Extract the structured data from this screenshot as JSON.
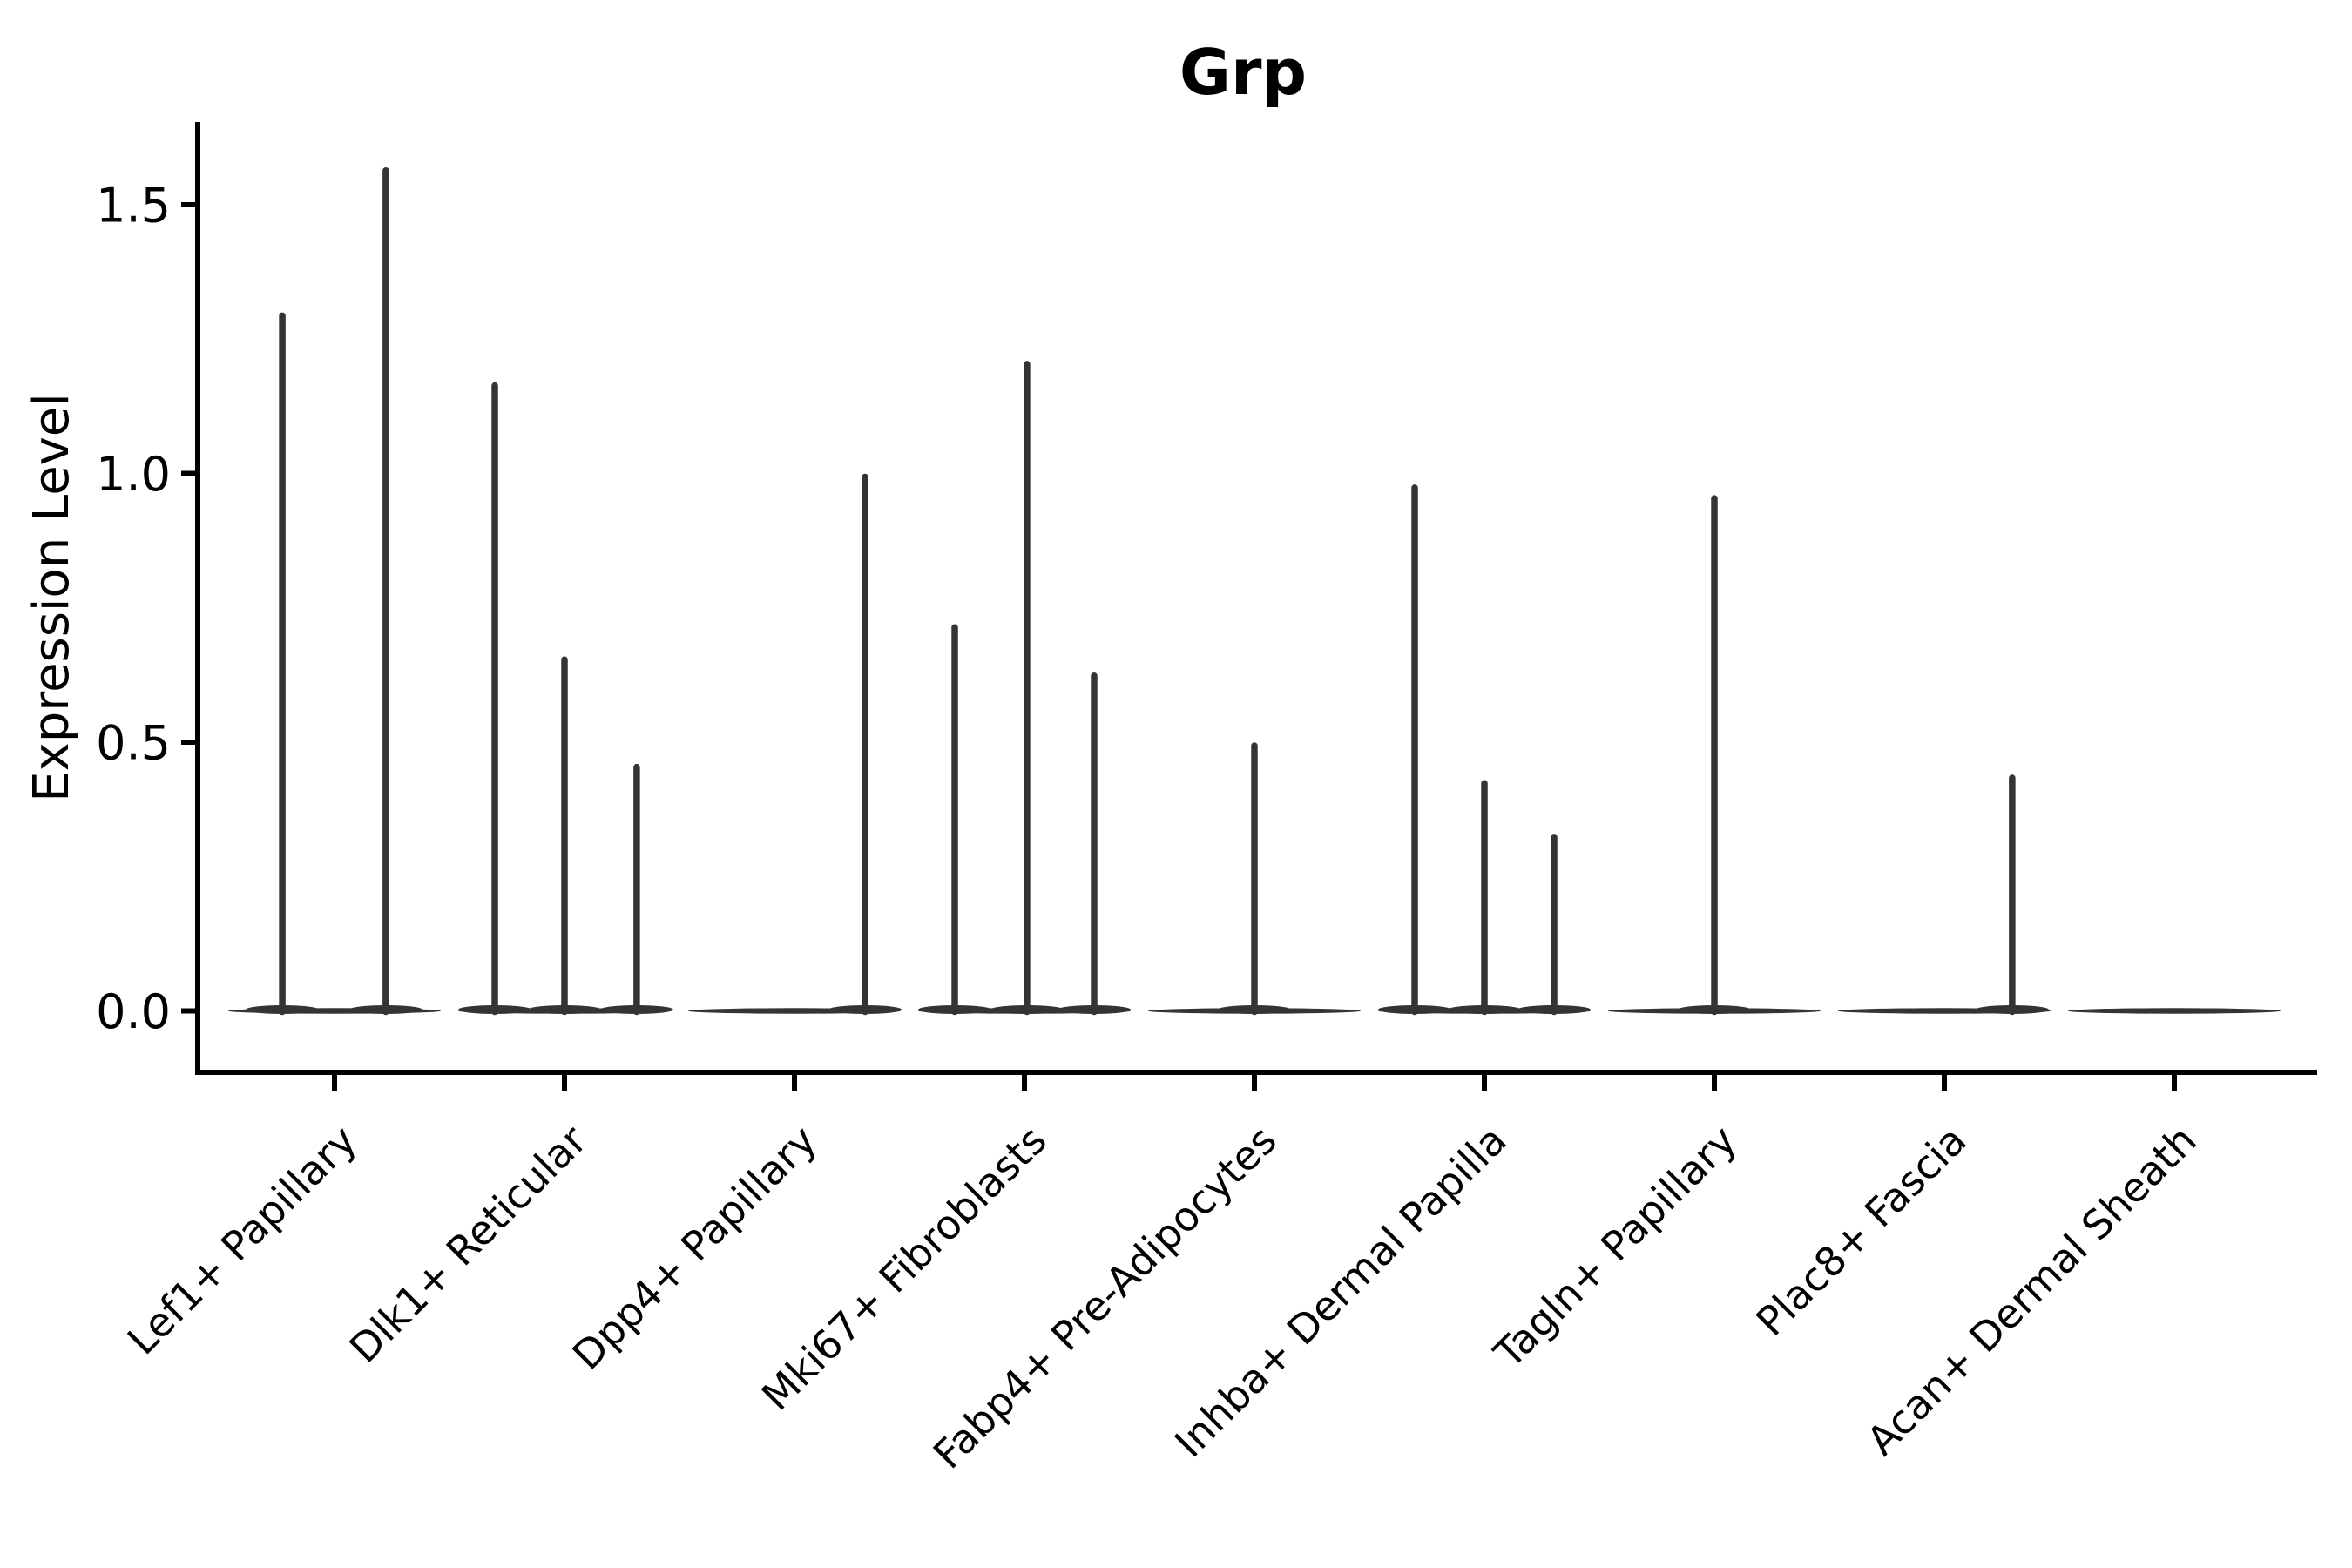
{
  "title": "Grp",
  "axes": {
    "ylabel": "Expression Level",
    "ytick_labels": [
      "0.0",
      "0.5",
      "1.0",
      "1.5"
    ]
  },
  "chart_data": {
    "type": "violin",
    "title": "Grp",
    "xlabel": "",
    "ylabel": "Expression Level",
    "ylim": [
      -0.11,
      1.65
    ],
    "yticks": [
      0.0,
      0.5,
      1.0,
      1.5
    ],
    "ytick_labels": [
      "0.0",
      "0.5",
      "1.0",
      "1.5"
    ],
    "grid": false,
    "legend": "none",
    "violin_color": "#343434",
    "axis_color": "#000000",
    "description": "Violin plot of Grp expression per fibroblast cluster; violins are flat at 0 with thin density spikes reaching the maximum expression values listed below. Spike dx is the horizontal dodge offset as a fraction of category spacing.",
    "categories": [
      "Lef1+ Papillary",
      "Dlk1+ Reticular",
      "Dpp4+ Papillary",
      "Mki67+ Fibroblasts",
      "Fabp4+ Pre-Adipocytes",
      "Inhba+ Dermal Papilla",
      "Tagln+ Papillary",
      "Plac8+ Fascia",
      "Acan+ Dermal Sheath"
    ],
    "series": [
      {
        "category": "Lef1+ Papillary",
        "spikes": [
          {
            "dx": -0.227,
            "max": 1.3
          },
          {
            "dx": 0.223,
            "max": 1.57
          }
        ]
      },
      {
        "category": "Dlk1+ Reticular",
        "spikes": [
          {
            "dx": -0.303,
            "max": 1.17
          },
          {
            "dx": 0.0,
            "max": 0.66
          },
          {
            "dx": 0.314,
            "max": 0.46
          }
        ]
      },
      {
        "category": "Dpp4+ Papillary",
        "spikes": [
          {
            "dx": 0.307,
            "max": 1.0
          }
        ]
      },
      {
        "category": "Mki67+ Fibroblasts",
        "spikes": [
          {
            "dx": -0.303,
            "max": 0.72
          },
          {
            "dx": 0.011,
            "max": 1.21
          },
          {
            "dx": 0.303,
            "max": 0.63
          }
        ]
      },
      {
        "category": "Fabp4+ Pre-Adipocytes",
        "spikes": [
          {
            "dx": 0.0,
            "max": 0.5
          }
        ]
      },
      {
        "category": "Inhba+ Dermal Papilla",
        "spikes": [
          {
            "dx": -0.303,
            "max": 0.98
          },
          {
            "dx": 0.0,
            "max": 0.43
          },
          {
            "dx": 0.303,
            "max": 0.33
          }
        ]
      },
      {
        "category": "Tagln+ Papillary",
        "spikes": [
          {
            "dx": 0.0,
            "max": 0.96
          }
        ]
      },
      {
        "category": "Plac8+ Fascia",
        "spikes": [
          {
            "dx": 0.295,
            "max": 0.44
          }
        ]
      },
      {
        "category": "Acan+ Dermal Sheath",
        "spikes": []
      }
    ]
  }
}
